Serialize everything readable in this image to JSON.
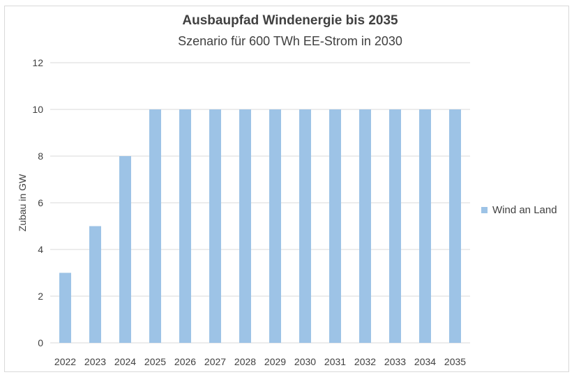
{
  "chart_data": {
    "type": "bar",
    "title": "Ausbaupfad Windenergie bis 2035",
    "subtitle": "Szenario für 600 TWh EE-Strom in 2030",
    "xlabel": "",
    "ylabel": "Zubau in GW",
    "ylim": [
      0,
      12
    ],
    "yticks": [
      0,
      2,
      4,
      6,
      8,
      10,
      12
    ],
    "grid": true,
    "legend_position": "right",
    "categories": [
      "2022",
      "2023",
      "2024",
      "2025",
      "2026",
      "2027",
      "2028",
      "2029",
      "2030",
      "2031",
      "2032",
      "2033",
      "2034",
      "2035"
    ],
    "series": [
      {
        "name": "Wind an Land",
        "color": "#9dc3e6",
        "values": [
          3,
          5,
          8,
          10,
          10,
          10,
          10,
          10,
          10,
          10,
          10,
          10,
          10,
          10
        ]
      }
    ]
  }
}
